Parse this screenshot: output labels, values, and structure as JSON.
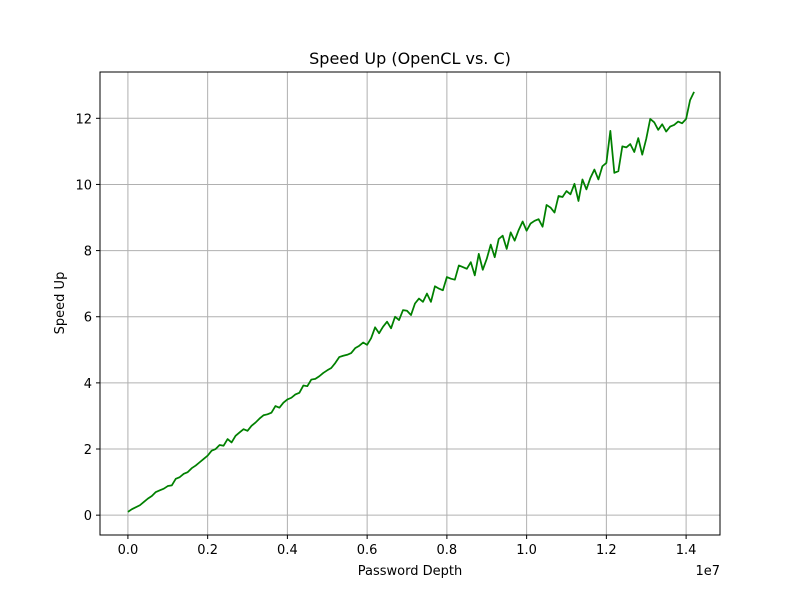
{
  "chart_data": {
    "type": "line",
    "title": "Speed Up (OpenCL vs. C)",
    "xlabel": "Password Depth",
    "ylabel": "Speed Up",
    "x_offset_label": "1e7",
    "xlim": [
      -700000,
      14850000
    ],
    "ylim": [
      -0.6,
      13.4
    ],
    "grid": true,
    "x_ticks": [
      0,
      2000000,
      4000000,
      6000000,
      8000000,
      10000000,
      12000000,
      14000000
    ],
    "x_tick_labels": [
      "0.0",
      "0.2",
      "0.4",
      "0.6",
      "0.8",
      "1.0",
      "1.2",
      "1.4"
    ],
    "y_ticks": [
      0,
      2,
      4,
      6,
      8,
      10,
      12
    ],
    "y_tick_labels": [
      "0",
      "2",
      "4",
      "6",
      "8",
      "10",
      "12"
    ],
    "series": [
      {
        "color": "#008000",
        "x": [
          0,
          100000,
          300000,
          400000,
          500000,
          600000,
          700000,
          800000,
          900000,
          1000000,
          1100000,
          1200000,
          1300000,
          1400000,
          1500000,
          1600000,
          1700000,
          1800000,
          1900000,
          2000000,
          2100000,
          2200000,
          2300000,
          2400000,
          2500000,
          2600000,
          2700000,
          2800000,
          2900000,
          3000000,
          3100000,
          3200000,
          3300000,
          3400000,
          3500000,
          3600000,
          3700000,
          3800000,
          3900000,
          4000000,
          4100000,
          4200000,
          4300000,
          4400000,
          4500000,
          4600000,
          4700000,
          4800000,
          4900000,
          5000000,
          5100000,
          5200000,
          5300000,
          5400000,
          5500000,
          5600000,
          5700000,
          5800000,
          5900000,
          6000000,
          6100000,
          6200000,
          6300000,
          6400000,
          6500000,
          6600000,
          6700000,
          6800000,
          6900000,
          7000000,
          7100000,
          7200000,
          7300000,
          7400000,
          7500000,
          7600000,
          7700000,
          7800000,
          7900000,
          8000000,
          8100000,
          8200000,
          8300000,
          8400000,
          8500000,
          8600000,
          8700000,
          8800000,
          8900000,
          9000000,
          9100000,
          9200000,
          9300000,
          9400000,
          9500000,
          9600000,
          9700000,
          9800000,
          9900000,
          10000000,
          10100000,
          10200000,
          10300000,
          10400000,
          10500000,
          10600000,
          10700000,
          10800000,
          10900000,
          11000000,
          11100000,
          11200000,
          11300000,
          11400000,
          11500000,
          11600000,
          11700000,
          11800000,
          11900000,
          12000000,
          12100000,
          12200000,
          12300000,
          12400000,
          12500000,
          12600000,
          12700000,
          12800000,
          12900000,
          13000000,
          13100000,
          13200000,
          13300000,
          13400000,
          13500000,
          13600000,
          13700000,
          13800000,
          13900000,
          14000000,
          14100000,
          14200000
        ],
        "values": [
          0.1,
          0.18,
          0.3,
          0.4,
          0.5,
          0.58,
          0.7,
          0.75,
          0.8,
          0.88,
          0.9,
          1.1,
          1.15,
          1.25,
          1.3,
          1.42,
          1.5,
          1.6,
          1.7,
          1.8,
          1.95,
          2.0,
          2.12,
          2.1,
          2.3,
          2.2,
          2.4,
          2.5,
          2.6,
          2.55,
          2.7,
          2.8,
          2.92,
          3.02,
          3.05,
          3.1,
          3.3,
          3.25,
          3.4,
          3.5,
          3.55,
          3.65,
          3.7,
          3.92,
          3.9,
          4.1,
          4.12,
          4.2,
          4.3,
          4.38,
          4.45,
          4.6,
          4.78,
          4.82,
          4.85,
          4.9,
          5.05,
          5.12,
          5.22,
          5.15,
          5.35,
          5.68,
          5.5,
          5.7,
          5.85,
          5.65,
          6.0,
          5.9,
          6.2,
          6.18,
          6.05,
          6.4,
          6.55,
          6.45,
          6.7,
          6.45,
          6.92,
          6.85,
          6.8,
          7.2,
          7.15,
          7.12,
          7.55,
          7.5,
          7.45,
          7.65,
          7.25,
          7.9,
          7.42,
          7.75,
          8.18,
          7.8,
          8.35,
          8.45,
          8.05,
          8.55,
          8.3,
          8.62,
          8.88,
          8.6,
          8.82,
          8.9,
          8.95,
          8.72,
          9.38,
          9.3,
          9.15,
          9.65,
          9.62,
          9.8,
          9.7,
          10.02,
          9.5,
          10.15,
          9.85,
          10.2,
          10.45,
          10.15,
          10.55,
          10.65,
          11.62,
          10.35,
          10.4,
          11.15,
          11.12,
          11.22,
          10.98,
          11.4,
          10.9,
          11.38,
          11.98,
          11.88,
          11.65,
          11.82,
          11.6,
          11.75,
          11.8,
          11.9,
          11.85,
          11.98,
          12.55,
          12.8
        ]
      }
    ]
  }
}
